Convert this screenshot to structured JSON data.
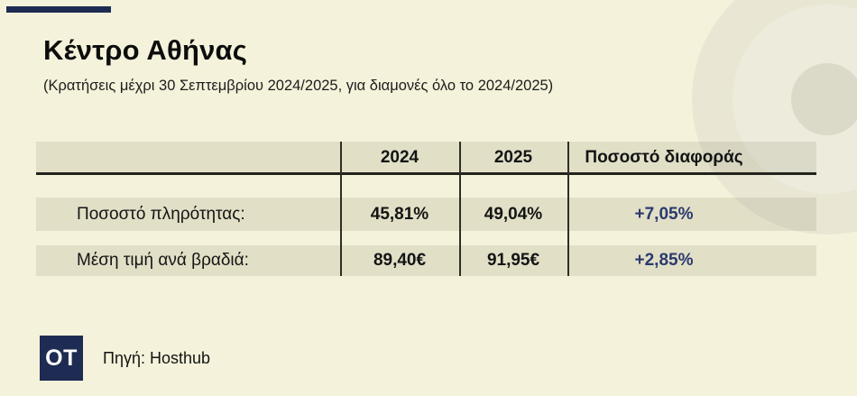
{
  "page": {
    "background_color": "#f4f2da",
    "accent_navy": "#1e2b52",
    "diff_text_color": "#2b3a6e"
  },
  "header": {
    "title": "Κέντρο Αθήνας",
    "subtitle": "(Κρατήσεις μέχρι 30 Σεπτεμβρίου 2024/2025, για διαμονές όλο το 2024/2025)"
  },
  "table": {
    "columns": {
      "year1": "2024",
      "year2": "2025",
      "diff": "Ποσοστό διαφοράς"
    },
    "rows": [
      {
        "label": "Ποσοστό πληρότητας:",
        "year1": "45,81%",
        "year2": "49,04%",
        "diff": "+7,05%"
      },
      {
        "label": "Μέση τιμή ανά βραδιά:",
        "year1": "89,40€",
        "year2": "91,95€",
        "diff": "+2,85%"
      }
    ]
  },
  "chart_data": {
    "type": "table",
    "title": "Κέντρο Αθήνας",
    "subtitle": "(Κρατήσεις μέχρι 30 Σεπτεμβρίου 2024/2025, για διαμονές όλο το 2024/2025)",
    "columns": [
      "",
      "2024",
      "2025",
      "Ποσοστό διαφοράς"
    ],
    "rows": [
      [
        "Ποσοστό πληρότητας:",
        "45,81%",
        "49,04%",
        "+7,05%"
      ],
      [
        "Μέση τιμή ανά βραδιά:",
        "89,40€",
        "91,95€",
        "+2,85%"
      ]
    ],
    "numeric": {
      "occupancy_rate": {
        "y2024": 45.81,
        "y2025": 49.04,
        "diff_pct": 7.05
      },
      "avg_price_per_night_eur": {
        "y2024": 89.4,
        "y2025": 91.95,
        "diff_pct": 2.85
      }
    },
    "source": "Πηγή: Hosthub"
  },
  "footer": {
    "logo_text": "OT",
    "source": "Πηγή: Hosthub"
  }
}
